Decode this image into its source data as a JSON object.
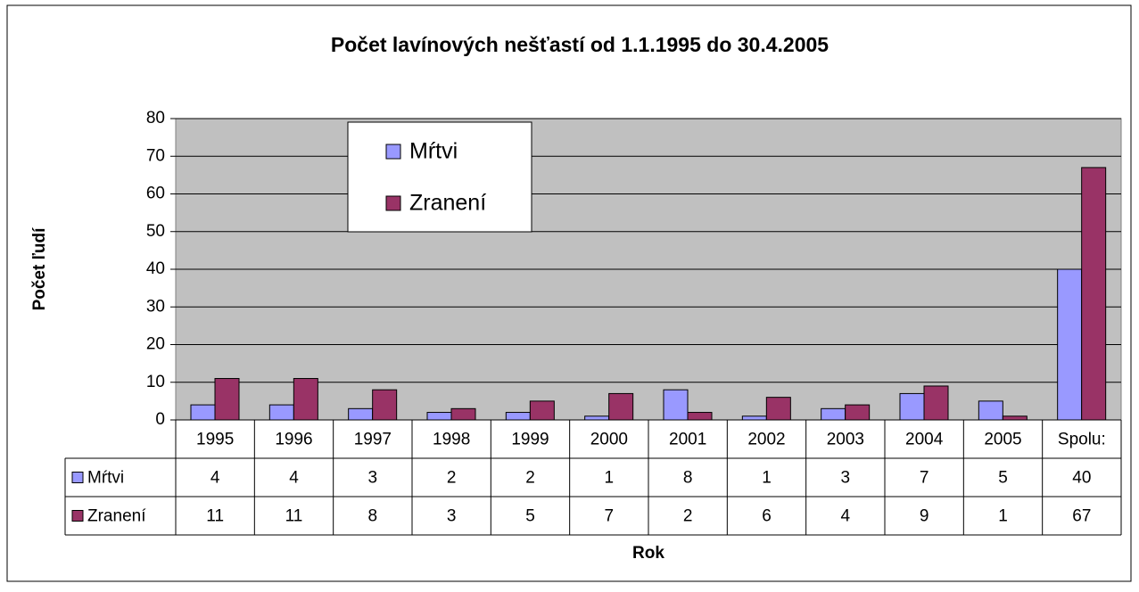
{
  "chart_data": {
    "type": "bar",
    "title": "Počet lavínových nešťastí od 1.1.1995 do 30.4.2005",
    "x_label": "Rok",
    "y_label": "Počet ľudí",
    "categories": [
      "1995",
      "1996",
      "1997",
      "1998",
      "1999",
      "2000",
      "2001",
      "2002",
      "2003",
      "2004",
      "2005",
      "Spolu:"
    ],
    "series": [
      {
        "name": "Mŕtvi",
        "color": "#9999ff",
        "values": [
          4,
          4,
          3,
          2,
          2,
          1,
          8,
          1,
          3,
          7,
          5,
          40
        ]
      },
      {
        "name": "Zranení",
        "color": "#993366",
        "values": [
          11,
          11,
          8,
          3,
          5,
          7,
          2,
          6,
          4,
          9,
          1,
          67
        ]
      }
    ],
    "ylim": [
      0,
      80
    ],
    "yticks": [
      0,
      10,
      20,
      30,
      40,
      50,
      60,
      70,
      80
    ],
    "grid": true,
    "legend": "upper left",
    "plot_background": "#c0c0c0"
  }
}
